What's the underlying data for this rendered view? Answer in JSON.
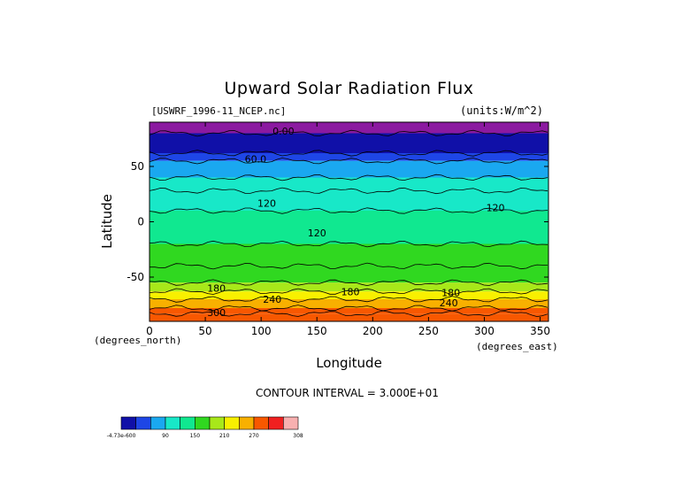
{
  "chart_data": {
    "type": "heatmap",
    "title": "Upward Solar Radiation Flux",
    "file_label": "[USWRF_1996-11_NCEP.nc]",
    "units_label": "(units:W/m^2)",
    "xlabel": "Longitude",
    "ylabel": "Latitude",
    "x_units": "(degrees_east)",
    "y_units": "(degrees_north)",
    "xlim": [
      0,
      357.5
    ],
    "ylim": [
      -90,
      90
    ],
    "x_ticks": [
      0,
      50,
      100,
      150,
      200,
      250,
      300,
      350
    ],
    "y_ticks": [
      50,
      0,
      -50
    ],
    "contour_interval_text": "CONTOUR INTERVAL = 3.000E+01",
    "levels": [
      "-4.73e-6",
      "30",
      "60",
      "90",
      "120",
      "150",
      "180",
      "210",
      "240",
      "270",
      "300",
      "308"
    ],
    "colorbar_tick_labels": [
      "-4.73e-600",
      "90",
      "150",
      "210",
      "270",
      "308"
    ],
    "colors": [
      "#1010a8",
      "#1e46e6",
      "#1aa8f0",
      "#18e8c8",
      "#10e890",
      "#30d820",
      "#a8e81a",
      "#f8f000",
      "#f8b000",
      "#f85800",
      "#f02020",
      "#f8b0b0"
    ],
    "top_band_color": "#8b1aa0",
    "lat_bands": [
      {
        "lat_top": 90,
        "lat_bottom": 80,
        "value": 0
      },
      {
        "lat_top": 80,
        "lat_bottom": 62,
        "value": 20
      },
      {
        "lat_top": 62,
        "lat_bottom": 55,
        "value": 45
      },
      {
        "lat_top": 55,
        "lat_bottom": 40,
        "value": 75
      },
      {
        "lat_top": 40,
        "lat_bottom": 28,
        "value": 100
      },
      {
        "lat_top": 28,
        "lat_bottom": 10,
        "value": 115
      },
      {
        "lat_top": 10,
        "lat_bottom": -20,
        "value": 140
      },
      {
        "lat_top": -20,
        "lat_bottom": -40,
        "value": 155
      },
      {
        "lat_top": -40,
        "lat_bottom": -55,
        "value": 170
      },
      {
        "lat_top": -55,
        "lat_bottom": -63,
        "value": 195
      },
      {
        "lat_top": -63,
        "lat_bottom": -70,
        "value": 225
      },
      {
        "lat_top": -70,
        "lat_bottom": -78,
        "value": 255
      },
      {
        "lat_top": -78,
        "lat_bottom": -83,
        "value": 285
      },
      {
        "lat_top": -83,
        "lat_bottom": -90,
        "value": 295
      }
    ],
    "contour_labels": [
      {
        "text": "0.00",
        "lon": 120,
        "lat": 82
      },
      {
        "text": "60.0",
        "lon": 95,
        "lat": 57
      },
      {
        "text": "120",
        "lon": 105,
        "lat": 17
      },
      {
        "text": "120",
        "lon": 310,
        "lat": 13
      },
      {
        "text": "120",
        "lon": 150,
        "lat": -10
      },
      {
        "text": "180",
        "lon": 60,
        "lat": -60
      },
      {
        "text": "180",
        "lon": 180,
        "lat": -63
      },
      {
        "text": "180",
        "lon": 270,
        "lat": -64
      },
      {
        "text": "240",
        "lon": 110,
        "lat": -70
      },
      {
        "text": "240",
        "lon": 268,
        "lat": -73
      },
      {
        "text": "300",
        "lon": 60,
        "lat": -82
      }
    ]
  }
}
